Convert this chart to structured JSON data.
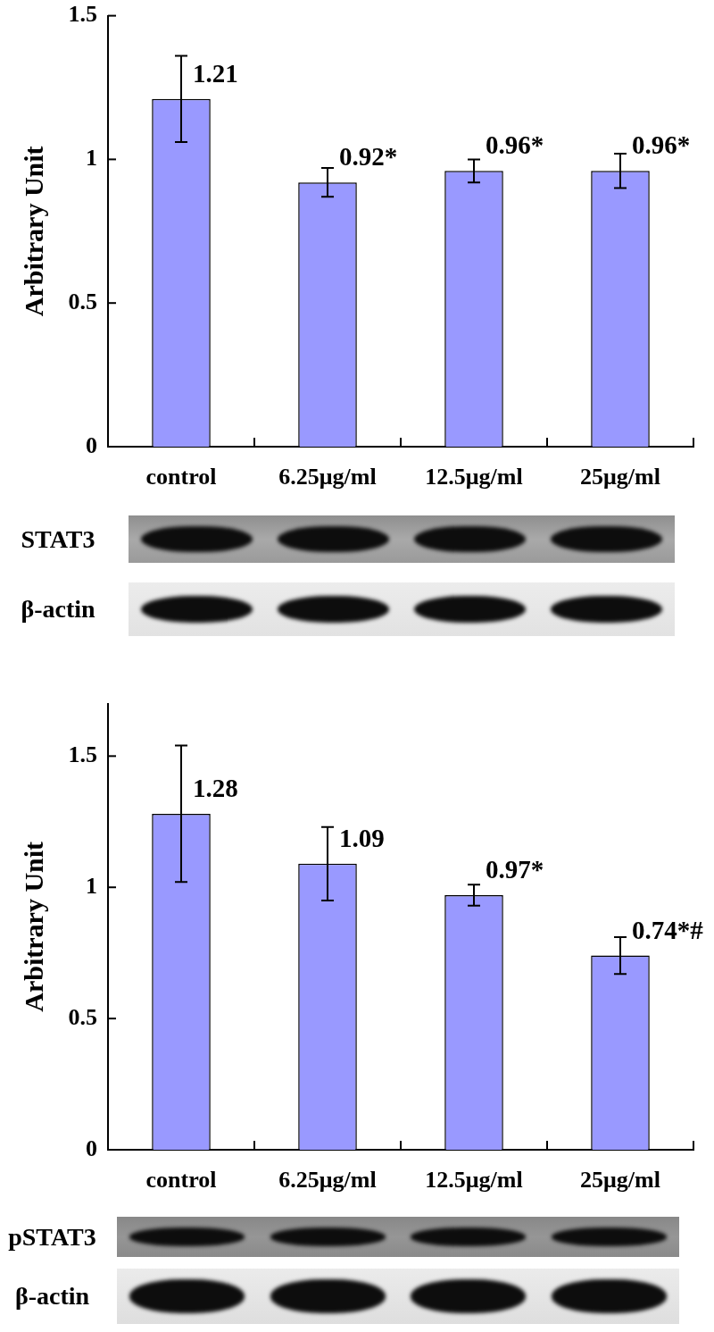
{
  "chart_data": [
    {
      "type": "bar",
      "ylabel": "Arbitrary Unit",
      "categories": [
        "control",
        "6.25μg/ml",
        "12.5μg/ml",
        "25μg/ml"
      ],
      "values": [
        1.21,
        0.92,
        0.96,
        0.96
      ],
      "errors": [
        0.15,
        0.05,
        0.04,
        0.06
      ],
      "value_labels": [
        "1.21",
        "0.92*",
        "0.96*",
        "0.96*"
      ],
      "color": "#9999ff",
      "ylim": [
        0,
        1.5
      ],
      "yticks": [
        0,
        0.5,
        1,
        1.5
      ],
      "annotations": [
        "STAT3",
        "β-actin"
      ]
    },
    {
      "type": "bar",
      "ylabel": "Arbitrary Unit",
      "categories": [
        "control",
        "6.25μg/ml",
        "12.5μg/ml",
        "25μg/ml"
      ],
      "values": [
        1.28,
        1.09,
        0.97,
        0.74
      ],
      "errors": [
        0.26,
        0.14,
        0.04,
        0.07
      ],
      "value_labels": [
        "1.28",
        "1.09",
        "0.97*",
        "0.74*#"
      ],
      "color": "#9999ff",
      "ylim": [
        0,
        1.7
      ],
      "yticks": [
        0,
        0.5,
        1,
        1.5
      ],
      "annotations": [
        "pSTAT3",
        "β-actin"
      ]
    }
  ]
}
